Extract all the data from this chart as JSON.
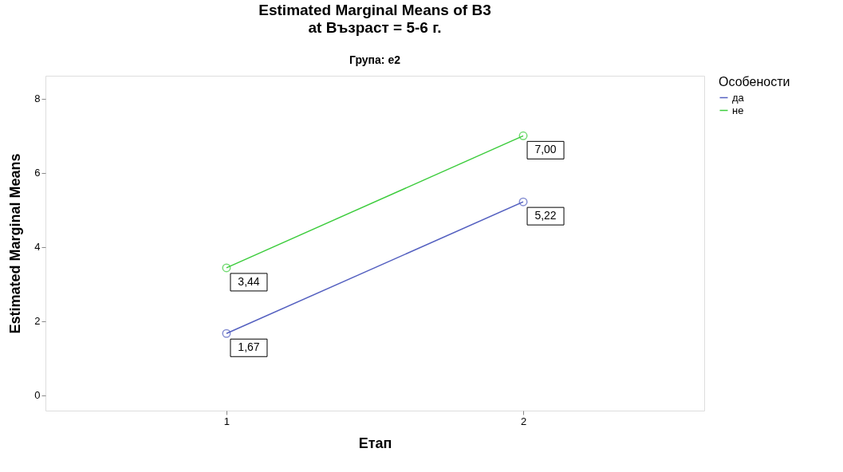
{
  "chart_data": {
    "type": "line",
    "title": "Estimated Marginal Means of B3",
    "subtitle": "at Възраст = 5-6 г.",
    "annotations": [
      "Група: e2"
    ],
    "xlabel": "Етап",
    "ylabel": "Estimated Marginal Means",
    "legend_title": "Особености",
    "categories": [
      "1",
      "2"
    ],
    "series": [
      {
        "name": "да",
        "color": "#5460c0",
        "values": [
          1.67,
          5.22
        ],
        "value_labels": [
          "1,67",
          "5,22"
        ]
      },
      {
        "name": "не",
        "color": "#3ccc3c",
        "values": [
          3.44,
          7.0
        ],
        "value_labels": [
          "3,44",
          "7,00"
        ]
      }
    ],
    "ylim": [
      -0.41,
      8.62
    ],
    "yticks": [
      0,
      2,
      4,
      6,
      8
    ],
    "grid": false,
    "legend": "top right",
    "marker": "circle",
    "line_style": "solid"
  }
}
